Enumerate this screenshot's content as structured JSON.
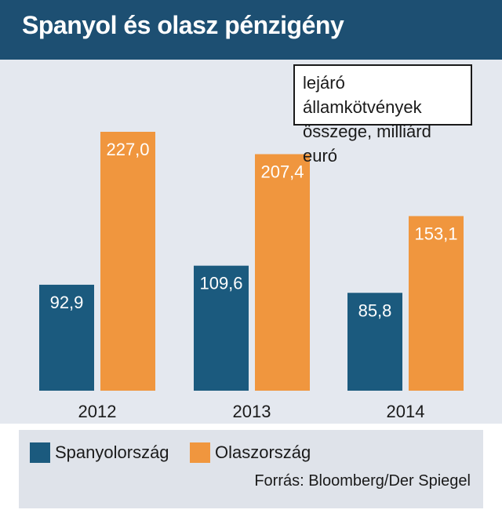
{
  "header": {
    "title": "Spanyol és olasz pénzigény"
  },
  "unit_note": "lejáró államkötvények összege, milliárd euró",
  "legend": [
    {
      "label": "Spanyolország",
      "color": "#1b5a7e"
    },
    {
      "label": "Olaszország",
      "color": "#f0963e"
    }
  ],
  "source": "Forrás: Bloomberg/Der Spiegel",
  "colors": {
    "title_bar": "#1d4f72",
    "panel": "#e4e8ef",
    "spain": "#1b5a7e",
    "italy": "#f0963e"
  },
  "chart_data": {
    "type": "bar",
    "title": "Spanyol és olasz pénzigény",
    "categories": [
      "2012",
      "2013",
      "2014"
    ],
    "series": [
      {
        "name": "Spanyolország",
        "values": [
          92.9,
          109.6,
          85.8
        ],
        "labels": [
          "92,9",
          "109,6",
          "85,8"
        ]
      },
      {
        "name": "Olaszország",
        "values": [
          227.0,
          207.4,
          153.1
        ],
        "labels": [
          "227,0",
          "207,4",
          "153,1"
        ]
      }
    ],
    "ylim": [
      0,
      250
    ],
    "grid": false,
    "legend_position": "bottom"
  }
}
